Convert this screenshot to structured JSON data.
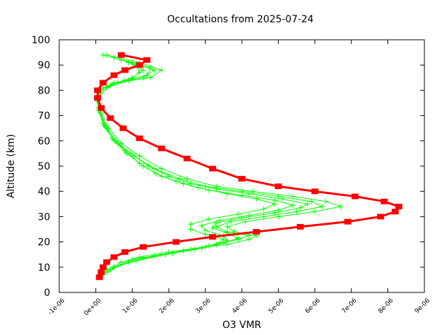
{
  "chart_data": {
    "type": "line",
    "title": "Occultations from 2025-07-24",
    "xlabel": "O3 VMR",
    "ylabel": "Altitude (km)",
    "xlim": [
      -1e-06,
      9e-06
    ],
    "ylim": [
      0,
      100
    ],
    "x_ticks": [
      "-1e-06",
      "0e+00",
      "1e-06",
      "2e-06",
      "3e-06",
      "4e-06",
      "5e-06",
      "6e-06",
      "7e-06",
      "8e-06",
      "9e-06"
    ],
    "x_tick_values": [
      -1e-06,
      0,
      1e-06,
      2e-06,
      3e-06,
      4e-06,
      5e-06,
      6e-06,
      7e-06,
      8e-06,
      9e-06
    ],
    "y_ticks": [
      "0",
      "10",
      "20",
      "30",
      "40",
      "50",
      "60",
      "70",
      "80",
      "90",
      "100"
    ],
    "y_tick_values": [
      0,
      10,
      20,
      30,
      40,
      50,
      60,
      70,
      80,
      90,
      100
    ],
    "grid": false,
    "legend": "none",
    "colors": {
      "green": "#00ff00",
      "red": "#ff0000"
    },
    "series": [
      {
        "color": "#00ff00",
        "marker": "plus",
        "points": [
          [
            1e-07,
            6
          ],
          [
            3e-07,
            9
          ],
          [
            7e-07,
            12
          ],
          [
            1.2e-06,
            14
          ],
          [
            2e-06,
            16
          ],
          [
            3e-06,
            18
          ],
          [
            3.6e-06,
            19
          ],
          [
            4.2e-06,
            21
          ],
          [
            4.4e-06,
            22.5
          ],
          [
            3.8e-06,
            24
          ],
          [
            3.6e-06,
            26
          ],
          [
            4.1e-06,
            28
          ],
          [
            5e-06,
            30
          ],
          [
            6e-06,
            32
          ],
          [
            6.7e-06,
            34
          ],
          [
            6.3e-06,
            36
          ],
          [
            5.4e-06,
            38
          ],
          [
            4.3e-06,
            40
          ],
          [
            3.3e-06,
            42
          ],
          [
            2.5e-06,
            45
          ],
          [
            1.8e-06,
            49
          ],
          [
            1.2e-06,
            54
          ],
          [
            7e-07,
            59
          ],
          [
            3.5e-07,
            65
          ],
          [
            1.5e-07,
            71
          ],
          [
            5e-08,
            76
          ],
          [
            1e-07,
            80
          ],
          [
            6e-07,
            83
          ],
          [
            1.5e-06,
            85
          ],
          [
            1.8e-06,
            88
          ],
          [
            1.2e-06,
            91
          ],
          [
            3e-07,
            94
          ]
        ]
      },
      {
        "color": "#00ff00",
        "marker": "plus",
        "points": [
          [
            2e-07,
            7
          ],
          [
            5e-07,
            10
          ],
          [
            1e-06,
            13
          ],
          [
            1.8e-06,
            15
          ],
          [
            2.6e-06,
            17
          ],
          [
            3.3e-06,
            19
          ],
          [
            3.9e-06,
            21
          ],
          [
            4.2e-06,
            22.5
          ],
          [
            3.6e-06,
            24
          ],
          [
            3.3e-06,
            26
          ],
          [
            3.7e-06,
            28
          ],
          [
            4.6e-06,
            30
          ],
          [
            5.5e-06,
            32
          ],
          [
            6.2e-06,
            34
          ],
          [
            5.9e-06,
            36
          ],
          [
            5e-06,
            38
          ],
          [
            4e-06,
            40
          ],
          [
            3e-06,
            42
          ],
          [
            2.3e-06,
            45
          ],
          [
            1.6e-06,
            49
          ],
          [
            1.05e-06,
            54
          ],
          [
            6e-07,
            59
          ],
          [
            3e-07,
            65
          ],
          [
            1.2e-07,
            71
          ],
          [
            3e-08,
            76
          ],
          [
            1e-07,
            80
          ],
          [
            5e-07,
            83
          ],
          [
            1.3e-06,
            85
          ],
          [
            1.6e-06,
            88
          ],
          [
            1e-06,
            91
          ],
          [
            2e-07,
            94
          ]
        ]
      },
      {
        "color": "#00ff00",
        "marker": "plus",
        "points": [
          [
            3e-07,
            8
          ],
          [
            7e-07,
            11
          ],
          [
            1.3e-06,
            13.5
          ],
          [
            2.1e-06,
            15.5
          ],
          [
            2.9e-06,
            17.5
          ],
          [
            3.5e-06,
            19.5
          ],
          [
            3.9e-06,
            21.5
          ],
          [
            3.6e-06,
            23.5
          ],
          [
            3.2e-06,
            25.5
          ],
          [
            3.3e-06,
            27.5
          ],
          [
            4e-06,
            29.5
          ],
          [
            4.9e-06,
            31.5
          ],
          [
            5.6e-06,
            33.5
          ],
          [
            5.8e-06,
            35
          ],
          [
            5.1e-06,
            37
          ],
          [
            4.2e-06,
            39
          ],
          [
            3.3e-06,
            41
          ],
          [
            2.6e-06,
            43
          ],
          [
            2e-06,
            46
          ],
          [
            1.45e-06,
            50
          ],
          [
            9.5e-07,
            55
          ],
          [
            5.5e-07,
            60
          ],
          [
            2.5e-07,
            66
          ],
          [
            1e-07,
            72
          ],
          [
            5e-08,
            77
          ],
          [
            2e-07,
            81
          ],
          [
            8e-07,
            84
          ],
          [
            1.4e-06,
            86
          ],
          [
            1.5e-06,
            89
          ],
          [
            7e-07,
            92
          ]
        ]
      },
      {
        "color": "#00ff00",
        "marker": "plus",
        "points": [
          [
            4e-07,
            9
          ],
          [
            9e-07,
            12
          ],
          [
            1.6e-06,
            14.5
          ],
          [
            2.4e-06,
            16.5
          ],
          [
            3.1e-06,
            18.5
          ],
          [
            3.6e-06,
            20.5
          ],
          [
            3.5e-06,
            22.5
          ],
          [
            3e-06,
            24.5
          ],
          [
            2.9e-06,
            26.5
          ],
          [
            3.4e-06,
            28.5
          ],
          [
            4.2e-06,
            30.5
          ],
          [
            5e-06,
            32.5
          ],
          [
            5.4e-06,
            34.5
          ],
          [
            4.9e-06,
            36.5
          ],
          [
            4e-06,
            38.5
          ],
          [
            3.1e-06,
            40.5
          ],
          [
            2.4e-06,
            43
          ],
          [
            1.8e-06,
            46
          ],
          [
            1.3e-06,
            50
          ],
          [
            8.5e-07,
            55
          ],
          [
            5e-07,
            60
          ],
          [
            2.2e-07,
            66
          ],
          [
            8e-08,
            72
          ],
          [
            5e-08,
            77
          ],
          [
            3e-07,
            81
          ],
          [
            9e-07,
            84
          ],
          [
            1.2e-06,
            87
          ],
          [
            1.1e-06,
            90
          ],
          [
            5e-07,
            93
          ]
        ]
      },
      {
        "color": "#00ff00",
        "marker": "plus",
        "points": [
          [
            5e-07,
            10
          ],
          [
            1.1e-06,
            12.5
          ],
          [
            1.9e-06,
            15
          ],
          [
            2.7e-06,
            17
          ],
          [
            3.3e-06,
            19
          ],
          [
            3.5e-06,
            21
          ],
          [
            3e-06,
            23
          ],
          [
            2.6e-06,
            25
          ],
          [
            2.6e-06,
            27
          ],
          [
            3.1e-06,
            29
          ],
          [
            3.9e-06,
            31
          ],
          [
            4.6e-06,
            33
          ],
          [
            4.9e-06,
            35
          ],
          [
            4.4e-06,
            37
          ],
          [
            3.6e-06,
            39
          ],
          [
            2.8e-06,
            41.5
          ],
          [
            2.2e-06,
            44
          ],
          [
            1.65e-06,
            47
          ],
          [
            1.2e-06,
            51
          ],
          [
            8e-07,
            56
          ],
          [
            4.5e-07,
            61
          ],
          [
            2e-07,
            67
          ],
          [
            7e-08,
            73
          ],
          [
            8e-08,
            78
          ],
          [
            4e-07,
            82
          ],
          [
            1e-06,
            85
          ],
          [
            1.3e-06,
            88
          ],
          [
            9e-07,
            91
          ]
        ]
      },
      {
        "color": "#ff0000",
        "marker": "square",
        "points": [
          [
            1e-07,
            6
          ],
          [
            1.5e-07,
            8
          ],
          [
            2e-07,
            10
          ],
          [
            3e-07,
            12
          ],
          [
            5e-07,
            14
          ],
          [
            8e-07,
            16
          ],
          [
            1.3e-06,
            18
          ],
          [
            2.2e-06,
            20
          ],
          [
            3.2e-06,
            22
          ],
          [
            4.4e-06,
            24
          ],
          [
            5.6e-06,
            26
          ],
          [
            6.9e-06,
            28
          ],
          [
            7.8e-06,
            30
          ],
          [
            8.2e-06,
            32
          ],
          [
            8.3e-06,
            34
          ],
          [
            7.9e-06,
            36
          ],
          [
            7.1e-06,
            38
          ],
          [
            6e-06,
            40
          ],
          [
            5e-06,
            42
          ],
          [
            4e-06,
            45
          ],
          [
            3.2e-06,
            49
          ],
          [
            2.5e-06,
            53
          ],
          [
            1.8e-06,
            57
          ],
          [
            1.2e-06,
            61
          ],
          [
            7.5e-07,
            65
          ],
          [
            4e-07,
            69
          ],
          [
            1.5e-07,
            73
          ],
          [
            5e-08,
            77
          ],
          [
            5e-08,
            80
          ],
          [
            2e-07,
            83
          ],
          [
            5e-07,
            86
          ],
          [
            8e-07,
            88
          ],
          [
            1.2e-06,
            90
          ],
          [
            1.4e-06,
            92
          ],
          [
            7e-07,
            94
          ]
        ]
      }
    ]
  }
}
